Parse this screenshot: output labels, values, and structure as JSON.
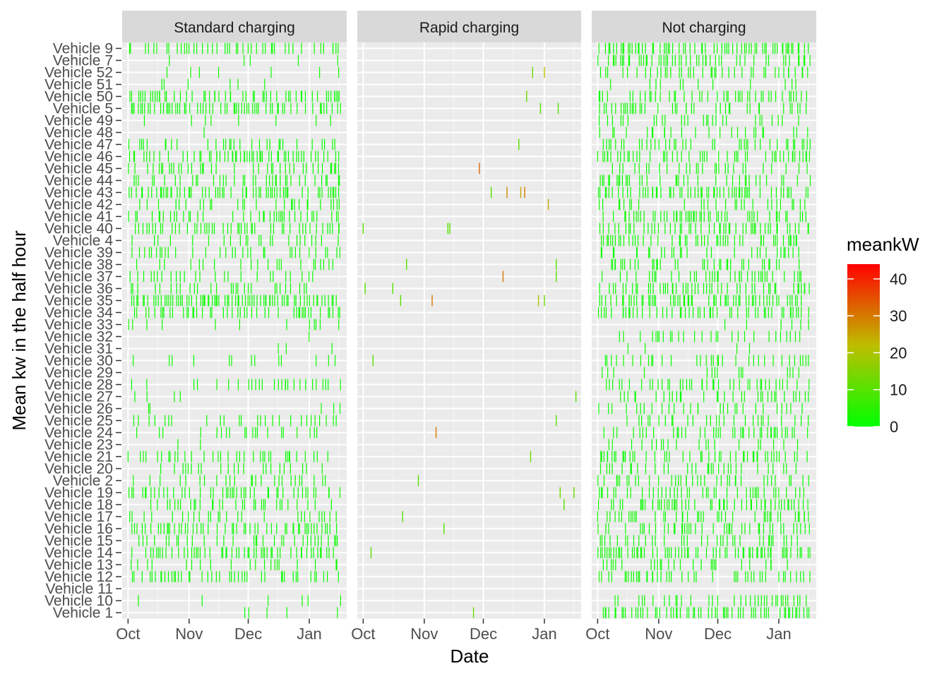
{
  "chart_data": {
    "type": "heatmap",
    "title": "",
    "xlabel": "Date",
    "ylabel": "Mean kw in the half hour",
    "facets": [
      "Standard charging",
      "Rapid charging",
      "Not charging"
    ],
    "x_ticks": [
      "Oct",
      "Nov",
      "Dec",
      "Jan"
    ],
    "x_range": [
      "2017-09-28",
      "2018-01-20"
    ],
    "vehicles": [
      "Vehicle 1",
      "Vehicle 10",
      "Vehicle 11",
      "Vehicle 12",
      "Vehicle 13",
      "Vehicle 14",
      "Vehicle 15",
      "Vehicle 16",
      "Vehicle 17",
      "Vehicle 18",
      "Vehicle 19",
      "Vehicle 2",
      "Vehicle 20",
      "Vehicle 21",
      "Vehicle 23",
      "Vehicle 24",
      "Vehicle 25",
      "Vehicle 26",
      "Vehicle 27",
      "Vehicle 28",
      "Vehicle 29",
      "Vehicle 30",
      "Vehicle 31",
      "Vehicle 32",
      "Vehicle 33",
      "Vehicle 34",
      "Vehicle 35",
      "Vehicle 36",
      "Vehicle 37",
      "Vehicle 38",
      "Vehicle 39",
      "Vehicle 4",
      "Vehicle 40",
      "Vehicle 41",
      "Vehicle 42",
      "Vehicle 43",
      "Vehicle 44",
      "Vehicle 45",
      "Vehicle 46",
      "Vehicle 47",
      "Vehicle 48",
      "Vehicle 49",
      "Vehicle 5",
      "Vehicle 50",
      "Vehicle 51",
      "Vehicle 52",
      "Vehicle 7",
      "Vehicle 9"
    ],
    "legend": {
      "title": "meankW",
      "breaks": [
        0,
        10,
        20,
        30,
        40
      ],
      "limits": [
        0,
        44
      ],
      "low_color": "#00ff00",
      "high_color": "#ff0000",
      "position": "right"
    },
    "grid": true,
    "rapid_events": [
      {
        "vehicle": "Vehicle 1",
        "date": "2017-11-26",
        "kw": 12
      },
      {
        "vehicle": "Vehicle 14",
        "date": "2017-10-05",
        "kw": 10
      },
      {
        "vehicle": "Vehicle 16",
        "date": "2017-11-11",
        "kw": 10
      },
      {
        "vehicle": "Vehicle 17",
        "date": "2017-10-21",
        "kw": 10
      },
      {
        "vehicle": "Vehicle 18",
        "date": "2018-01-11",
        "kw": 10
      },
      {
        "vehicle": "Vehicle 19",
        "date": "2018-01-09",
        "kw": 12
      },
      {
        "vehicle": "Vehicle 19",
        "date": "2018-01-16",
        "kw": 12
      },
      {
        "vehicle": "Vehicle 2",
        "date": "2017-10-29",
        "kw": 10
      },
      {
        "vehicle": "Vehicle 21",
        "date": "2017-12-25",
        "kw": 12
      },
      {
        "vehicle": "Vehicle 24",
        "date": "2017-11-07",
        "kw": 30
      },
      {
        "vehicle": "Vehicle 25",
        "date": "2018-01-07",
        "kw": 10
      },
      {
        "vehicle": "Vehicle 27",
        "date": "2018-01-17",
        "kw": 10
      },
      {
        "vehicle": "Vehicle 30",
        "date": "2017-10-06",
        "kw": 10
      },
      {
        "vehicle": "Vehicle 35",
        "date": "2017-10-20",
        "kw": 10
      },
      {
        "vehicle": "Vehicle 35",
        "date": "2017-11-05",
        "kw": 30
      },
      {
        "vehicle": "Vehicle 35",
        "date": "2018-01-01",
        "kw": 12
      },
      {
        "vehicle": "Vehicle 35",
        "date": "2017-12-29",
        "kw": 20
      },
      {
        "vehicle": "Vehicle 36",
        "date": "2017-10-02",
        "kw": 10
      },
      {
        "vehicle": "Vehicle 36",
        "date": "2017-10-16",
        "kw": 10
      },
      {
        "vehicle": "Vehicle 37",
        "date": "2017-12-11",
        "kw": 30
      },
      {
        "vehicle": "Vehicle 37",
        "date": "2018-01-07",
        "kw": 10
      },
      {
        "vehicle": "Vehicle 38",
        "date": "2017-10-23",
        "kw": 10
      },
      {
        "vehicle": "Vehicle 38",
        "date": "2018-01-07",
        "kw": 10
      },
      {
        "vehicle": "Vehicle 40",
        "date": "2017-10-01",
        "kw": 10
      },
      {
        "vehicle": "Vehicle 40",
        "date": "2017-11-13",
        "kw": 10
      },
      {
        "vehicle": "Vehicle 40",
        "date": "2017-11-14",
        "kw": 10
      },
      {
        "vehicle": "Vehicle 42",
        "date": "2018-01-03",
        "kw": 25
      },
      {
        "vehicle": "Vehicle 43",
        "date": "2017-12-05",
        "kw": 10
      },
      {
        "vehicle": "Vehicle 43",
        "date": "2017-12-13",
        "kw": 28
      },
      {
        "vehicle": "Vehicle 43",
        "date": "2017-12-20",
        "kw": 25
      },
      {
        "vehicle": "Vehicle 43",
        "date": "2017-12-22",
        "kw": 30
      },
      {
        "vehicle": "Vehicle 45",
        "date": "2017-11-29",
        "kw": 33
      },
      {
        "vehicle": "Vehicle 47",
        "date": "2017-12-19",
        "kw": 10
      },
      {
        "vehicle": "Vehicle 5",
        "date": "2017-12-30",
        "kw": 10
      },
      {
        "vehicle": "Vehicle 5",
        "date": "2018-01-08",
        "kw": 10
      },
      {
        "vehicle": "Vehicle 50",
        "date": "2017-12-23",
        "kw": 12
      },
      {
        "vehicle": "Vehicle 52",
        "date": "2017-12-26",
        "kw": 12
      },
      {
        "vehicle": "Vehicle 52",
        "date": "2018-01-01",
        "kw": 22
      }
    ],
    "standard_activity": {
      "description_levels": "relative event density per vehicle row (0-1), events at ~0-3 kW",
      "density": {
        "Vehicle 1": 0.05,
        "Vehicle 10": 0.12,
        "Vehicle 11": 0.0,
        "Vehicle 12": 0.55,
        "Vehicle 13": 0.3,
        "Vehicle 14": 0.6,
        "Vehicle 15": 0.45,
        "Vehicle 16": 0.6,
        "Vehicle 17": 0.35,
        "Vehicle 18": 0.4,
        "Vehicle 19": 0.5,
        "Vehicle 2": 0.35,
        "Vehicle 20": 0.25,
        "Vehicle 21": 0.45,
        "Vehicle 23": 0.05,
        "Vehicle 24": 0.3,
        "Vehicle 25": 0.35,
        "Vehicle 26": 0.05,
        "Vehicle 27": 0.05,
        "Vehicle 28": 0.3,
        "Vehicle 29": 0.0,
        "Vehicle 30": 0.12,
        "Vehicle 31": 0.06,
        "Vehicle 32": 0.05,
        "Vehicle 33": 0.15,
        "Vehicle 34": 0.5,
        "Vehicle 35": 0.9,
        "Vehicle 36": 0.3,
        "Vehicle 37": 0.3,
        "Vehicle 38": 0.3,
        "Vehicle 39": 0.35,
        "Vehicle 4": 0.25,
        "Vehicle 40": 0.55,
        "Vehicle 41": 0.45,
        "Vehicle 42": 0.3,
        "Vehicle 43": 0.65,
        "Vehicle 44": 0.5,
        "Vehicle 45": 0.3,
        "Vehicle 46": 0.7,
        "Vehicle 47": 0.4,
        "Vehicle 48": 0.02,
        "Vehicle 49": 0.05,
        "Vehicle 5": 0.75,
        "Vehicle 50": 0.55,
        "Vehicle 51": 0.1,
        "Vehicle 52": 0.12,
        "Vehicle 7": 0.08,
        "Vehicle 9": 0.55
      }
    },
    "not_charging_activity": {
      "description_levels": "relative event density per vehicle row (0-1), events at ~0-2 kW",
      "density": {
        "Vehicle 1": 0.75,
        "Vehicle 10": 0.45,
        "Vehicle 11": 0.0,
        "Vehicle 12": 0.5,
        "Vehicle 13": 0.35,
        "Vehicle 14": 0.65,
        "Vehicle 15": 0.4,
        "Vehicle 16": 0.55,
        "Vehicle 17": 0.5,
        "Vehicle 18": 0.65,
        "Vehicle 19": 0.6,
        "Vehicle 2": 0.45,
        "Vehicle 20": 0.35,
        "Vehicle 21": 0.55,
        "Vehicle 23": 0.3,
        "Vehicle 24": 0.5,
        "Vehicle 25": 0.35,
        "Vehicle 26": 0.35,
        "Vehicle 27": 0.3,
        "Vehicle 28": 0.45,
        "Vehicle 29": 0.15,
        "Vehicle 30": 0.3,
        "Vehicle 31": 0.1,
        "Vehicle 32": 0.35,
        "Vehicle 33": 0.1,
        "Vehicle 34": 0.7,
        "Vehicle 35": 0.7,
        "Vehicle 36": 0.6,
        "Vehicle 37": 0.55,
        "Vehicle 38": 0.45,
        "Vehicle 39": 0.4,
        "Vehicle 4": 0.65,
        "Vehicle 40": 0.6,
        "Vehicle 41": 0.55,
        "Vehicle 42": 0.35,
        "Vehicle 43": 0.7,
        "Vehicle 44": 0.35,
        "Vehicle 45": 0.4,
        "Vehicle 46": 0.55,
        "Vehicle 47": 0.5,
        "Vehicle 48": 0.3,
        "Vehicle 49": 0.35,
        "Vehicle 5": 0.45,
        "Vehicle 50": 0.45,
        "Vehicle 51": 0.15,
        "Vehicle 52": 0.4,
        "Vehicle 7": 0.55,
        "Vehicle 9": 0.75
      }
    }
  }
}
